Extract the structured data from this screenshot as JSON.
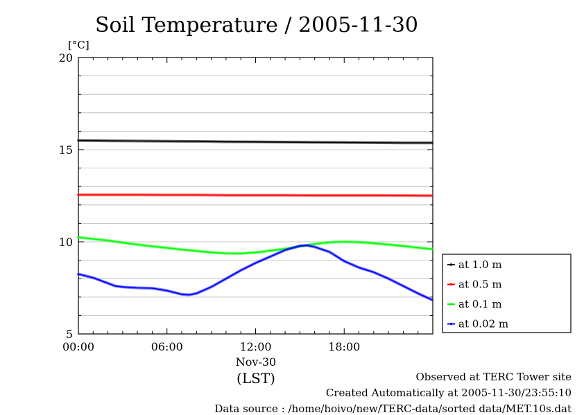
{
  "chart_data": {
    "type": "line",
    "title": "Soil Temperature / 2005-11-30",
    "ylabel": "[°C]",
    "xlabel": "(LST)",
    "x_date_label": "Nov-30",
    "ylim": [
      5,
      20
    ],
    "xlim_hours": [
      0,
      24
    ],
    "y_ticks": [
      5,
      10,
      15,
      20
    ],
    "x_ticks": [
      {
        "hour": 0,
        "label": "00:00"
      },
      {
        "hour": 6,
        "label": "06:00"
      },
      {
        "hour": 12,
        "label": "12:00"
      },
      {
        "hour": 18,
        "label": "18:00"
      }
    ],
    "grid": true,
    "legend_position": "right",
    "series": [
      {
        "name": "at 1.0 m",
        "color": "#000000",
        "x": [
          0,
          2,
          4,
          6,
          8,
          10,
          12,
          14,
          16,
          18,
          20,
          22,
          23.95
        ],
        "y": [
          15.5,
          15.48,
          15.47,
          15.46,
          15.45,
          15.43,
          15.42,
          15.41,
          15.4,
          15.39,
          15.38,
          15.37,
          15.37
        ]
      },
      {
        "name": "at 0.5 m",
        "color": "#ff0000",
        "x": [
          0,
          2,
          4,
          6,
          8,
          10,
          12,
          14,
          16,
          18,
          20,
          22,
          23.95
        ],
        "y": [
          12.55,
          12.55,
          12.55,
          12.54,
          12.54,
          12.53,
          12.53,
          12.53,
          12.52,
          12.52,
          12.52,
          12.51,
          12.5
        ]
      },
      {
        "name": "at 0.1 m",
        "color": "#00ff00",
        "x": [
          0,
          1,
          2,
          3,
          4,
          5,
          6,
          7,
          8,
          9,
          10,
          11,
          12,
          13,
          14,
          15,
          16,
          17,
          18,
          19,
          20,
          21,
          22,
          23,
          23.95
        ],
        "y": [
          10.25,
          10.15,
          10.07,
          9.95,
          9.85,
          9.75,
          9.67,
          9.58,
          9.5,
          9.42,
          9.38,
          9.37,
          9.42,
          9.52,
          9.62,
          9.75,
          9.88,
          9.97,
          10.0,
          9.98,
          9.92,
          9.85,
          9.77,
          9.68,
          9.6
        ]
      },
      {
        "name": "at 0.02 m",
        "color": "#0000ff",
        "x": [
          0,
          1,
          2,
          2.5,
          3,
          4,
          5,
          6,
          7,
          7.5,
          8,
          9,
          10,
          11,
          12,
          13,
          14,
          15,
          15.5,
          16,
          17,
          18,
          19,
          20,
          21,
          22,
          23,
          23.95
        ],
        "y": [
          8.25,
          8.05,
          7.75,
          7.6,
          7.55,
          7.5,
          7.48,
          7.35,
          7.15,
          7.12,
          7.2,
          7.55,
          8.0,
          8.45,
          8.85,
          9.2,
          9.55,
          9.78,
          9.8,
          9.72,
          9.45,
          8.95,
          8.6,
          8.35,
          8.0,
          7.6,
          7.2,
          6.85
        ]
      }
    ]
  },
  "footer": {
    "site": "Observed at TERC Tower site",
    "created": "Created Automatically at 2005-11-30/23:55:10",
    "source": "Data source : /home/hoivo/new/TERC-data/sorted  data/MET.10s.dat"
  }
}
